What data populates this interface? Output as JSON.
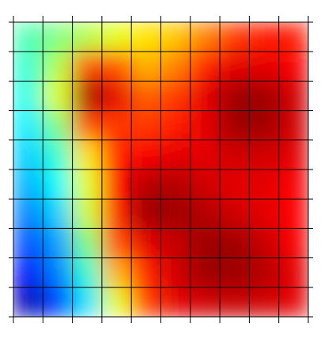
{
  "chart_data": {
    "type": "heatmap",
    "colormap": "jet",
    "zlim": [
      0,
      1
    ],
    "values": [
      [
        0.45,
        0.5,
        0.55,
        0.6,
        0.65,
        0.68,
        0.75,
        0.82,
        0.85,
        0.85
      ],
      [
        0.42,
        0.55,
        0.8,
        0.8,
        0.7,
        0.75,
        0.85,
        0.9,
        0.9,
        0.88
      ],
      [
        0.4,
        0.6,
        0.97,
        0.9,
        0.78,
        0.82,
        0.9,
        0.97,
        0.97,
        0.92
      ],
      [
        0.36,
        0.5,
        0.8,
        0.82,
        0.82,
        0.85,
        0.9,
        0.97,
        0.97,
        0.92
      ],
      [
        0.33,
        0.42,
        0.65,
        0.85,
        0.88,
        0.9,
        0.9,
        0.92,
        0.92,
        0.9
      ],
      [
        0.3,
        0.38,
        0.6,
        0.87,
        0.95,
        0.95,
        0.92,
        0.9,
        0.9,
        0.88
      ],
      [
        0.25,
        0.33,
        0.58,
        0.85,
        0.97,
        0.97,
        0.95,
        0.92,
        0.9,
        0.87
      ],
      [
        0.2,
        0.28,
        0.5,
        0.8,
        0.9,
        0.93,
        0.97,
        0.97,
        0.93,
        0.88
      ],
      [
        0.12,
        0.25,
        0.42,
        0.7,
        0.85,
        0.92,
        0.97,
        0.97,
        0.95,
        0.9
      ],
      [
        0.05,
        0.18,
        0.35,
        0.6,
        0.82,
        0.9,
        0.92,
        0.93,
        0.92,
        0.9
      ]
    ]
  }
}
